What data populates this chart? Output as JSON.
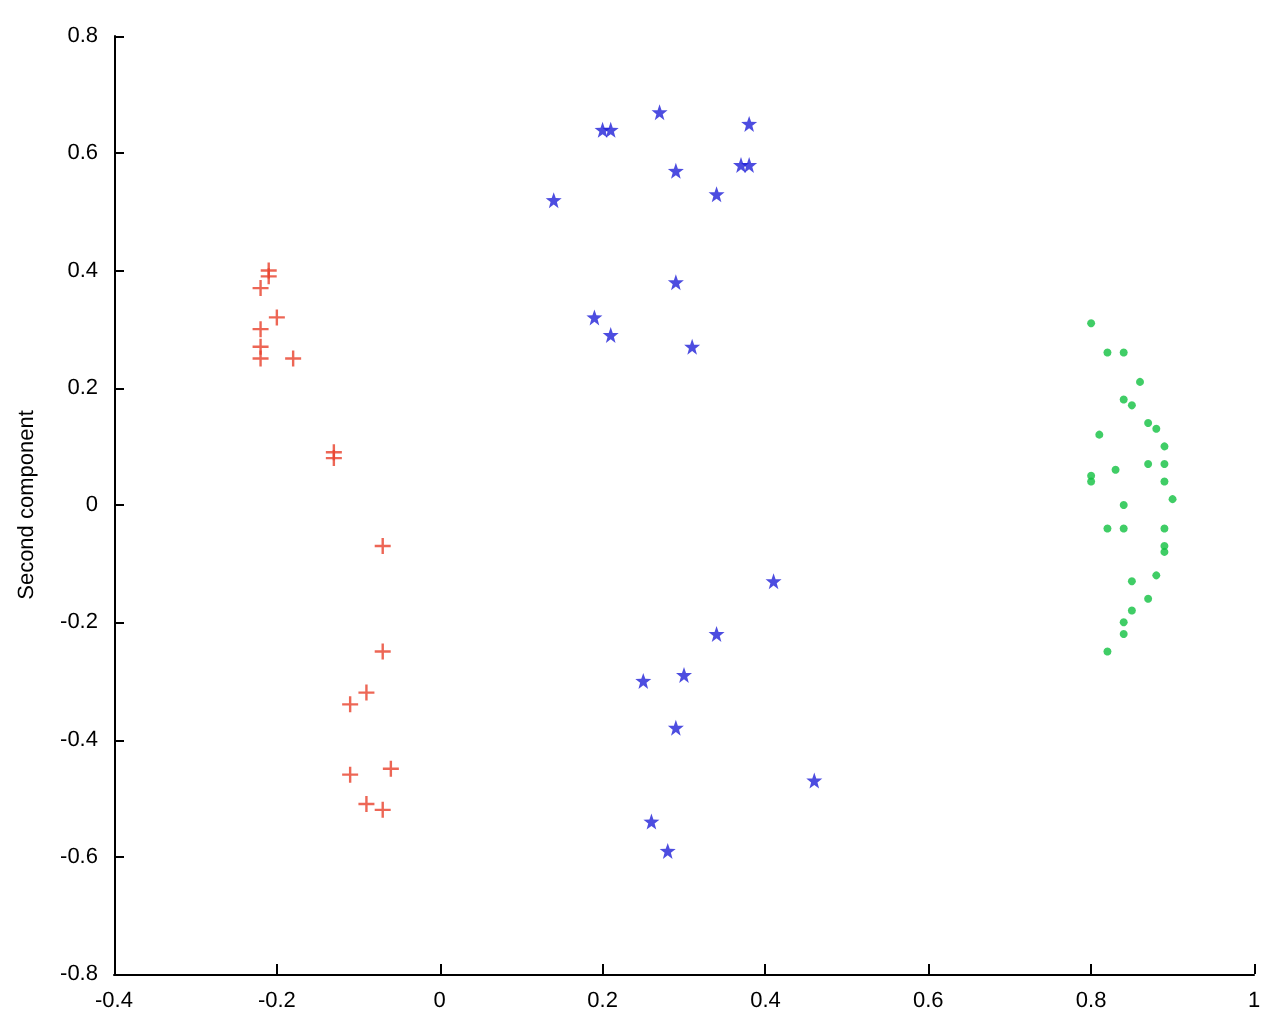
{
  "chart_data": {
    "type": "scatter",
    "ylabel": "Second component",
    "xlim": [
      -0.4,
      1
    ],
    "xticks": [
      -0.4,
      -0.2,
      0,
      0.2,
      0.4,
      0.6,
      0.8,
      1
    ],
    "ylim": [
      -0.8,
      0.8
    ],
    "yticks": [
      -0.8,
      -0.6,
      -0.4,
      -0.2,
      0,
      0.2,
      0.4,
      0.6,
      0.8
    ],
    "grid": false,
    "series": [
      {
        "color": "#e8402a",
        "marker": "cross",
        "x": [
          -0.21,
          -0.21,
          -0.22,
          -0.2,
          -0.22,
          -0.22,
          -0.22,
          -0.18,
          -0.13,
          -0.13,
          -0.07,
          -0.07,
          -0.09,
          -0.11,
          -0.06,
          -0.11,
          -0.09,
          -0.07
        ],
        "values": [
          0.4,
          0.39,
          0.37,
          0.32,
          0.3,
          0.27,
          0.25,
          0.25,
          0.08,
          0.09,
          -0.07,
          -0.25,
          -0.32,
          -0.34,
          -0.45,
          -0.46,
          -0.51,
          -0.52
        ]
      },
      {
        "color": "#2020d8",
        "marker": "star",
        "x": [
          0.27,
          0.2,
          0.21,
          0.38,
          0.29,
          0.37,
          0.38,
          0.34,
          0.14,
          0.29,
          0.19,
          0.21,
          0.31,
          0.41,
          0.34,
          0.25,
          0.3,
          0.29,
          0.46,
          0.26,
          0.28
        ],
        "values": [
          0.67,
          0.64,
          0.64,
          0.65,
          0.57,
          0.58,
          0.58,
          0.53,
          0.52,
          0.38,
          0.32,
          0.29,
          0.27,
          -0.13,
          -0.22,
          -0.3,
          -0.29,
          -0.38,
          -0.47,
          -0.54,
          -0.59
        ]
      },
      {
        "color": "#10c040",
        "marker": "circle",
        "x": [
          0.8,
          0.82,
          0.84,
          0.86,
          0.84,
          0.85,
          0.87,
          0.88,
          0.81,
          0.89,
          0.87,
          0.89,
          0.83,
          0.8,
          0.8,
          0.89,
          0.9,
          0.84,
          0.82,
          0.84,
          0.89,
          0.89,
          0.89,
          0.88,
          0.85,
          0.87,
          0.85,
          0.84,
          0.84,
          0.82
        ],
        "values": [
          0.31,
          0.26,
          0.26,
          0.21,
          0.18,
          0.17,
          0.14,
          0.13,
          0.12,
          0.1,
          0.07,
          0.07,
          0.06,
          0.05,
          0.04,
          0.04,
          0.01,
          0,
          -0.04,
          -0.04,
          -0.04,
          -0.07,
          -0.08,
          -0.12,
          -0.13,
          -0.16,
          -0.18,
          -0.2,
          -0.22,
          -0.25
        ]
      }
    ]
  }
}
